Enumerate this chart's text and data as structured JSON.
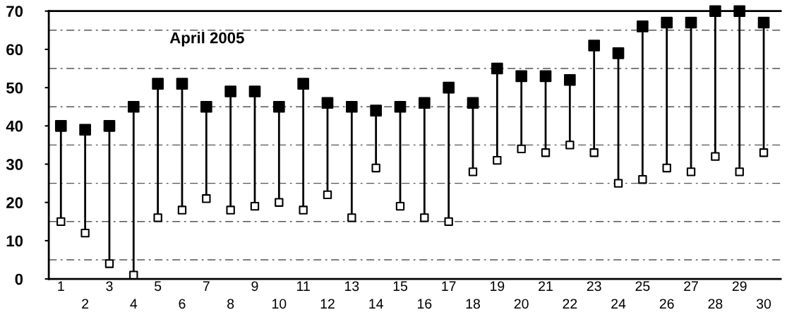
{
  "chart_data": {
    "type": "scatter",
    "title": "April 2005",
    "categories": [
      "1",
      "2",
      "3",
      "4",
      "5",
      "6",
      "7",
      "8",
      "9",
      "10",
      "11",
      "12",
      "13",
      "14",
      "15",
      "16",
      "17",
      "18",
      "19",
      "20",
      "21",
      "22",
      "23",
      "24",
      "25",
      "26",
      "27",
      "28",
      "29",
      "30"
    ],
    "series": [
      {
        "color": "#000000",
        "marker": "square",
        "values": [
          40,
          39,
          40,
          45,
          51,
          51,
          45,
          49,
          49,
          45,
          51,
          46,
          45,
          44,
          45,
          46,
          50,
          46,
          55,
          53,
          53,
          52,
          61,
          59,
          66,
          67,
          67,
          70,
          70,
          67
        ]
      },
      {
        "color": "#ffffff",
        "marker": "square",
        "values": [
          15,
          12,
          4,
          1,
          16,
          18,
          21,
          18,
          19,
          20,
          18,
          22,
          16,
          29,
          19,
          16,
          15,
          28,
          31,
          34,
          33,
          35,
          33,
          25,
          26,
          29,
          28,
          32,
          28,
          33
        ]
      }
    ],
    "ylim": [
      0,
      70
    ],
    "yticks": [
      0,
      10,
      20,
      30,
      40,
      50,
      60,
      70
    ],
    "grid": false,
    "ref_lines": [
      {
        "axis": "y",
        "value": 5,
        "line_style": "dashed",
        "color": "#555555"
      },
      {
        "axis": "y",
        "value": 15,
        "line_style": "dashed",
        "color": "#555555"
      },
      {
        "axis": "y",
        "value": 25,
        "line_style": "dashed",
        "color": "#555555"
      },
      {
        "axis": "y",
        "value": 35,
        "line_style": "dashed",
        "color": "#555555"
      },
      {
        "axis": "y",
        "value": 45,
        "line_style": "dashed",
        "color": "#555555"
      },
      {
        "axis": "y",
        "value": 55,
        "line_style": "dashed",
        "color": "#555555"
      },
      {
        "axis": "y",
        "value": 65,
        "line_style": "dashed",
        "color": "#555555"
      }
    ]
  }
}
